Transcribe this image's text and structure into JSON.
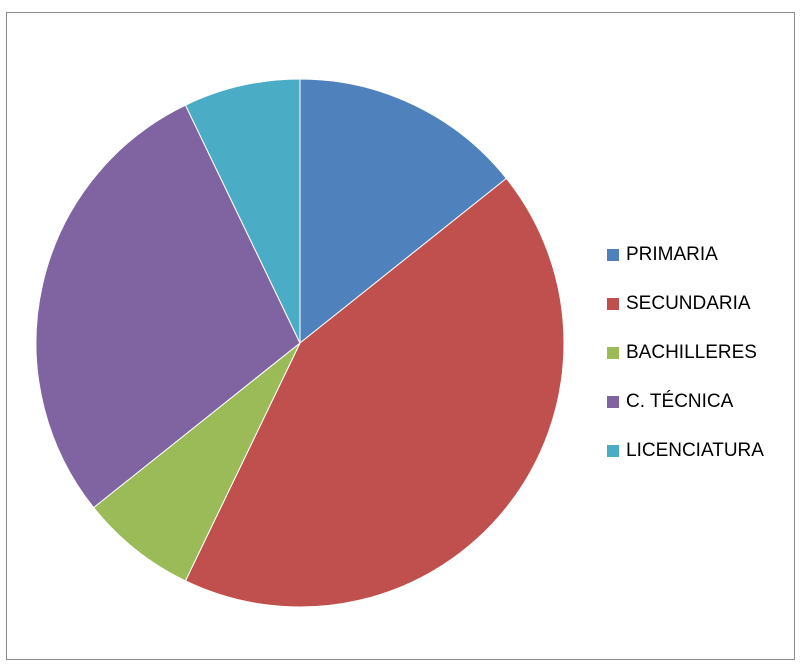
{
  "chart_data": {
    "type": "pie",
    "title": "",
    "categories": [
      "PRIMARIA",
      "SECUNDARIA",
      "BACHILLERES",
      "C. TÉCNICA",
      "LICENCIATURA"
    ],
    "values": [
      2,
      6,
      1,
      4,
      1
    ],
    "colors": [
      "#4F81BD",
      "#C0504D",
      "#9BBB59",
      "#8064A2",
      "#4BACC6"
    ],
    "start_angle_deg": 0,
    "direction": "clockwise",
    "legend_position": "right"
  }
}
